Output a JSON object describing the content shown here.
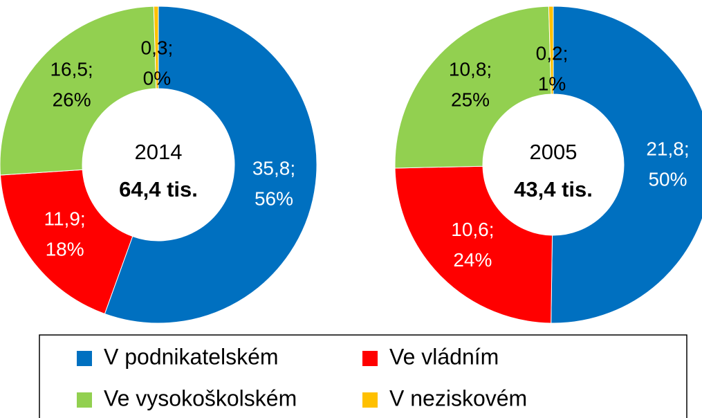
{
  "chart_data": [
    {
      "type": "donut",
      "center_label": "2014",
      "total_label": "64,4 tis.",
      "values": [
        35.8,
        11.9,
        16.5,
        0.3
      ],
      "value_labels": [
        [
          "35,8;",
          "56%"
        ],
        [
          "11,9;",
          "18%"
        ],
        [
          "16,5;",
          "26%"
        ],
        [
          "0,3;",
          "0%"
        ]
      ]
    },
    {
      "type": "donut",
      "center_label": "2005",
      "total_label": "43,4 tis.",
      "values": [
        21.8,
        10.6,
        10.8,
        0.2
      ],
      "value_labels": [
        [
          "21,8;",
          "50%"
        ],
        [
          "10,6;",
          "24%"
        ],
        [
          "10,8;",
          "25%"
        ],
        [
          "0,2;",
          "1%"
        ]
      ]
    }
  ],
  "legend": {
    "series": [
      {
        "name": "V podnikatelském",
        "color": "#0070c0",
        "label_color": "#ffffff"
      },
      {
        "name": "Ve vládním",
        "color": "#ff0000",
        "label_color": "#ffffff"
      },
      {
        "name": "Ve vysokoškolském",
        "color": "#92d050",
        "label_color": "#000000"
      },
      {
        "name": "V neziskovém",
        "color": "#ffc000",
        "label_color": "#000000"
      }
    ]
  }
}
